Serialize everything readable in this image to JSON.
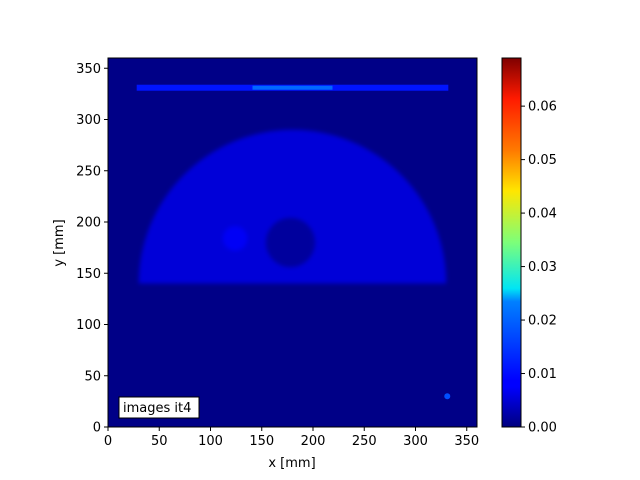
{
  "chart_data": {
    "type": "heatmap",
    "title": "",
    "xlabel": "x [mm]",
    "ylabel": "y [mm]",
    "xlim": [
      0,
      360
    ],
    "ylim": [
      0,
      360
    ],
    "x_ticks": [
      0,
      50,
      100,
      150,
      200,
      250,
      300,
      350
    ],
    "y_ticks": [
      0,
      50,
      100,
      150,
      200,
      250,
      300,
      350
    ],
    "colorbar": {
      "colormap": "jet",
      "range": [
        0,
        0.069
      ],
      "ticks": [
        "0.00",
        "0.01",
        "0.02",
        "0.03",
        "0.04",
        "0.05",
        "0.06"
      ]
    },
    "annotation": "images it4",
    "background_value": 0.0005,
    "features": [
      {
        "kind": "half-disk",
        "center": [
          180,
          140
        ],
        "radius": 150,
        "value": 0.006
      },
      {
        "kind": "cold-spot",
        "center": [
          178,
          180
        ],
        "radius": 24,
        "value": 0.002
      },
      {
        "kind": "hot-spot",
        "center": [
          124,
          184
        ],
        "radius": 12,
        "value": 0.008
      },
      {
        "kind": "horizontal-line",
        "x_range": [
          28,
          332
        ],
        "y": 331,
        "value": 0.01,
        "peak": 0.018
      },
      {
        "kind": "point",
        "center": [
          331,
          30
        ],
        "value": 0.014
      }
    ]
  }
}
